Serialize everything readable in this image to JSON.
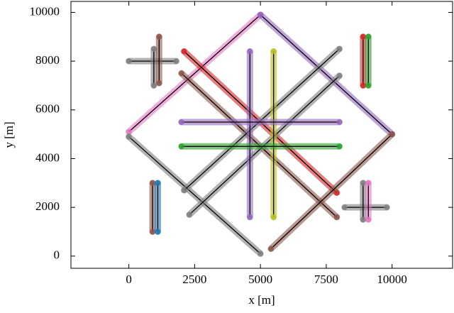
{
  "chart_data": {
    "type": "line",
    "xlabel": "x [m]",
    "ylabel": "y [m]",
    "xlim": [
      -2200,
      12300
    ],
    "ylim": [
      -500,
      10450
    ],
    "xticks": [
      0,
      2500,
      5000,
      7500,
      10000
    ],
    "yticks": [
      0,
      2000,
      4000,
      6000,
      8000,
      10000
    ],
    "series": [
      {
        "color": "#e377c2",
        "x": [
          0,
          5000
        ],
        "values": [
          5100,
          9900
        ]
      },
      {
        "color": "#9467bd",
        "x": [
          5000,
          10000
        ],
        "values": [
          9900,
          5000
        ]
      },
      {
        "color": "#d62728",
        "x": [
          2100,
          7900
        ],
        "values": [
          8400,
          2600
        ]
      },
      {
        "color": "#8c564b",
        "x": [
          2000,
          7900
        ],
        "values": [
          7500,
          1600
        ]
      },
      {
        "color": "#8c564b",
        "x": [
          5400,
          10000
        ],
        "values": [
          300,
          5000
        ]
      },
      {
        "color": "#7f7f7f",
        "x": [
          0,
          5000
        ],
        "values": [
          4900,
          100
        ]
      },
      {
        "color": "#7f7f7f",
        "x": [
          2100,
          8000
        ],
        "values": [
          2700,
          8500
        ]
      },
      {
        "color": "#7f7f7f",
        "x": [
          2300,
          8000
        ],
        "values": [
          1700,
          7400
        ]
      },
      {
        "color": "#9467bd",
        "x": [
          4600,
          4600
        ],
        "values": [
          1600,
          8400
        ]
      },
      {
        "color": "#bcbd22",
        "x": [
          5500,
          5500
        ],
        "values": [
          1600,
          8400
        ]
      },
      {
        "color": "#9467bd",
        "x": [
          2000,
          8000
        ],
        "values": [
          5500,
          5500
        ]
      },
      {
        "color": "#2ca02c",
        "x": [
          2000,
          8000
        ],
        "values": [
          4500,
          4500
        ]
      },
      {
        "color": "#7f7f7f",
        "x": [
          0,
          1800
        ],
        "values": [
          8000,
          8000
        ]
      },
      {
        "color": "#7f7f7f",
        "x": [
          950,
          950
        ],
        "values": [
          7000,
          8500
        ]
      },
      {
        "color": "#8c564b",
        "x": [
          1150,
          1150
        ],
        "values": [
          7100,
          9000
        ]
      },
      {
        "color": "#8c564b",
        "x": [
          900,
          900
        ],
        "values": [
          3000,
          1000
        ]
      },
      {
        "color": "#1f77b4",
        "x": [
          1100,
          1100
        ],
        "values": [
          3000,
          1000
        ]
      },
      {
        "color": "#d62728",
        "x": [
          8900,
          8900
        ],
        "values": [
          9000,
          7000
        ]
      },
      {
        "color": "#2ca02c",
        "x": [
          9100,
          9100
        ],
        "values": [
          9000,
          7000
        ]
      },
      {
        "color": "#7f7f7f",
        "x": [
          8200,
          9800
        ],
        "values": [
          2000,
          2000
        ]
      },
      {
        "color": "#7f7f7f",
        "x": [
          8900,
          8900
        ],
        "values": [
          1500,
          3000
        ]
      },
      {
        "color": "#e377c2",
        "x": [
          9100,
          9100
        ],
        "values": [
          3000,
          1500
        ]
      }
    ]
  }
}
